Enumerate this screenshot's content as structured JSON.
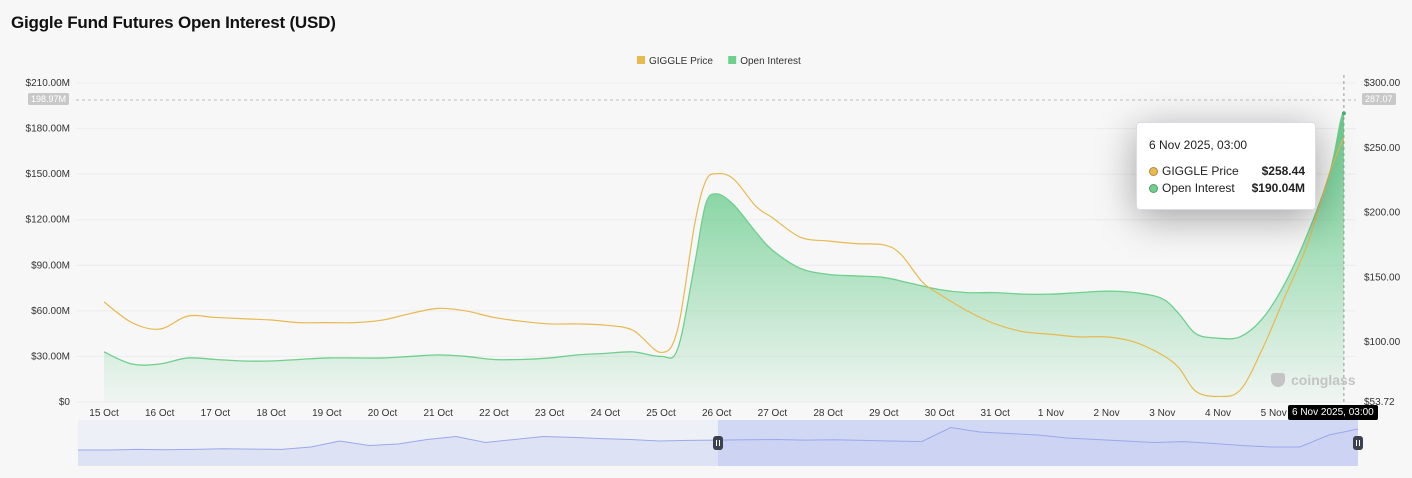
{
  "title": "Giggle Fund Futures Open Interest (USD)",
  "legend": [
    {
      "label": "GIGGLE Price",
      "color": "#e8b94f"
    },
    {
      "label": "Open Interest",
      "color": "#6fcf8e"
    }
  ],
  "tooltip": {
    "date": "6 Nov 2025, 03:00",
    "rows": [
      {
        "label": "GIGGLE Price",
        "value": "$258.44",
        "color": "#e8b94f"
      },
      {
        "label": "Open Interest",
        "value": "$190.04M",
        "color": "#6fcf8e"
      }
    ]
  },
  "crosshair": {
    "x_label": "6 Nov 2025, 03:00",
    "left_label": "198.97M",
    "right_label": "287.07"
  },
  "watermark": "coinglass",
  "chart_data": {
    "type": "line",
    "title": "Giggle Fund Futures Open Interest (USD)",
    "categories": [
      "15 Oct",
      "16 Oct",
      "17 Oct",
      "18 Oct",
      "19 Oct",
      "20 Oct",
      "21 Oct",
      "22 Oct",
      "23 Oct",
      "24 Oct",
      "25 Oct",
      "26 Oct",
      "27 Oct",
      "28 Oct",
      "29 Oct",
      "30 Oct",
      "31 Oct",
      "1 Nov",
      "2 Nov",
      "3 Nov",
      "4 Nov",
      "5 Nov"
    ],
    "left_axis": {
      "ticks": [
        "$0",
        "$30.00M",
        "$60.00M",
        "$90.00M",
        "$120.00M",
        "$150.00M",
        "$180.00M",
        "$210.00M"
      ],
      "min": 0,
      "max": 210
    },
    "right_axis": {
      "ticks": [
        "$53.72",
        "$100.00",
        "$150.00",
        "$200.00",
        "$250.00",
        "$300.00"
      ],
      "min": 53.72,
      "max": 300
    },
    "series": [
      {
        "name": "Open Interest",
        "axis": "left",
        "type": "area",
        "color": "#6fcf8e",
        "points": [
          [
            0,
            33
          ],
          [
            0.5,
            25
          ],
          [
            1,
            25
          ],
          [
            1.5,
            29
          ],
          [
            2,
            28
          ],
          [
            2.5,
            27
          ],
          [
            3,
            27
          ],
          [
            3.5,
            28
          ],
          [
            4,
            29
          ],
          [
            4.5,
            29
          ],
          [
            5,
            29
          ],
          [
            5.5,
            30
          ],
          [
            6,
            31
          ],
          [
            6.5,
            30
          ],
          [
            7,
            28
          ],
          [
            7.5,
            28
          ],
          [
            8,
            29
          ],
          [
            8.5,
            31
          ],
          [
            9,
            32
          ],
          [
            9.5,
            33
          ],
          [
            10,
            30
          ],
          [
            10.3,
            35
          ],
          [
            10.6,
            90
          ],
          [
            10.8,
            130
          ],
          [
            11,
            137
          ],
          [
            11.3,
            130
          ],
          [
            11.7,
            112
          ],
          [
            12,
            100
          ],
          [
            12.5,
            88
          ],
          [
            13,
            84
          ],
          [
            13.5,
            83
          ],
          [
            14,
            82
          ],
          [
            14.5,
            78
          ],
          [
            15,
            74
          ],
          [
            15.5,
            72
          ],
          [
            16,
            72
          ],
          [
            16.5,
            71
          ],
          [
            17,
            71
          ],
          [
            17.5,
            72
          ],
          [
            18,
            73
          ],
          [
            18.5,
            72
          ],
          [
            19,
            68
          ],
          [
            19.3,
            58
          ],
          [
            19.6,
            45
          ],
          [
            20,
            42
          ],
          [
            20.4,
            43
          ],
          [
            20.8,
            55
          ],
          [
            21.2,
            78
          ],
          [
            21.6,
            110
          ],
          [
            22,
            150
          ],
          [
            22.2,
            185
          ],
          [
            22.26,
            190.04
          ]
        ]
      },
      {
        "name": "GIGGLE Price",
        "axis": "right",
        "type": "line",
        "color": "#e8b94f",
        "points": [
          [
            0,
            131
          ],
          [
            0.5,
            115
          ],
          [
            1,
            110
          ],
          [
            1.5,
            120
          ],
          [
            2,
            119
          ],
          [
            2.5,
            118
          ],
          [
            3,
            117
          ],
          [
            3.5,
            115
          ],
          [
            4,
            115
          ],
          [
            4.5,
            115
          ],
          [
            5,
            117
          ],
          [
            5.5,
            122
          ],
          [
            6,
            126
          ],
          [
            6.5,
            124
          ],
          [
            7,
            119
          ],
          [
            7.5,
            116
          ],
          [
            8,
            114
          ],
          [
            8.5,
            114
          ],
          [
            9,
            113
          ],
          [
            9.5,
            109
          ],
          [
            10,
            92
          ],
          [
            10.3,
            110
          ],
          [
            10.6,
            190
          ],
          [
            10.8,
            224
          ],
          [
            11,
            230
          ],
          [
            11.3,
            226
          ],
          [
            11.7,
            205
          ],
          [
            12,
            196
          ],
          [
            12.5,
            181
          ],
          [
            13,
            178
          ],
          [
            13.5,
            176
          ],
          [
            14,
            175
          ],
          [
            14.3,
            168
          ],
          [
            14.7,
            146
          ],
          [
            15,
            137
          ],
          [
            15.5,
            124
          ],
          [
            16,
            114
          ],
          [
            16.5,
            108
          ],
          [
            17,
            106
          ],
          [
            17.5,
            104
          ],
          [
            18,
            104
          ],
          [
            18.5,
            100
          ],
          [
            19,
            90
          ],
          [
            19.3,
            80
          ],
          [
            19.6,
            62
          ],
          [
            20,
            58
          ],
          [
            20.4,
            63
          ],
          [
            20.8,
            95
          ],
          [
            21.2,
            135
          ],
          [
            21.6,
            175
          ],
          [
            22,
            230
          ],
          [
            22.26,
            258.44
          ]
        ]
      }
    ],
    "crosshair_at": 22.26,
    "grid": true,
    "legend_position": "top-center"
  },
  "navigator": {
    "color": "#9aa9ea",
    "fill": "#dde2f5",
    "selected_fill": "#c5cdf2",
    "range_start": 0.5,
    "range_end": 1.0,
    "points": [
      0.2,
      0.2,
      0.22,
      0.21,
      0.22,
      0.24,
      0.23,
      0.22,
      0.3,
      0.5,
      0.35,
      0.4,
      0.55,
      0.65,
      0.45,
      0.55,
      0.65,
      0.62,
      0.58,
      0.55,
      0.5,
      0.52,
      0.53,
      0.54,
      0.55,
      0.53,
      0.54,
      0.52,
      0.5,
      0.48,
      0.95,
      0.8,
      0.75,
      0.7,
      0.6,
      0.55,
      0.5,
      0.45,
      0.48,
      0.42,
      0.35,
      0.3,
      0.3,
      0.7,
      0.9
    ]
  }
}
